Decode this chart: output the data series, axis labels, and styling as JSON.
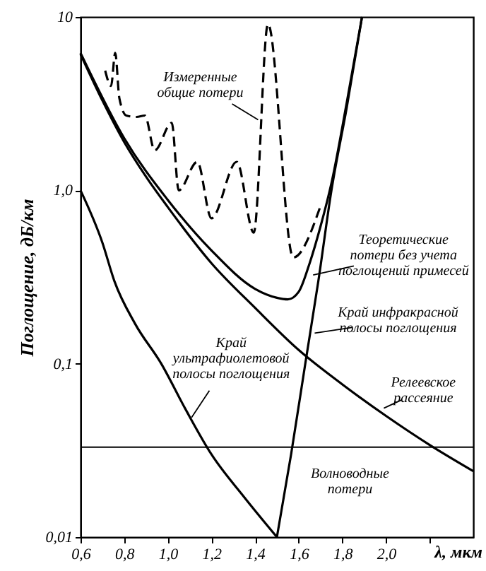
{
  "chart_data": {
    "type": "line",
    "xlabel": "λ, мкм",
    "ylabel": "Поглощение, дБ/км",
    "xlim": [
      0.6,
      2.4
    ],
    "xticks": [
      {
        "value": 0.6,
        "label": "0,6"
      },
      {
        "value": 0.8,
        "label": "0,8"
      },
      {
        "value": 1.0,
        "label": "1,0"
      },
      {
        "value": 1.2,
        "label": "1,2"
      },
      {
        "value": 1.4,
        "label": "1,4"
      },
      {
        "value": 1.6,
        "label": "1,6"
      },
      {
        "value": 1.8,
        "label": "1,8"
      },
      {
        "value": 2.0,
        "label": "2,0"
      },
      {
        "value": 2.2,
        "label": null
      }
    ],
    "ylim": [
      0.01,
      10
    ],
    "yticks": [
      {
        "value": 0.01,
        "label": "0,01"
      },
      {
        "value": 0.1,
        "label": "0,1"
      },
      {
        "value": 1,
        "label": "1,0"
      },
      10
    ],
    "log": "y",
    "grid": false,
    "marker": "none",
    "series": [
      {
        "color": "#000000",
        "line_style": "dashed",
        "x": [
          0.713,
          0.74,
          0.759,
          0.778,
          0.81,
          0.856,
          0.895,
          0.94,
          1.018,
          1.05,
          1.135,
          1.2,
          1.316,
          1.394,
          1.459,
          1.575,
          1.698
        ],
        "values": [
          4.9,
          4.0,
          6.2,
          3.4,
          2.7,
          2.65,
          2.7,
          1.7,
          2.45,
          1.0,
          1.46,
          0.69,
          1.46,
          0.57,
          9.1,
          0.41,
          0.8
        ]
      },
      {
        "color": "#000000",
        "line_style": "solid",
        "x": [
          0.6,
          0.8,
          1.0,
          1.2,
          1.4,
          1.5,
          1.55,
          1.6,
          1.65,
          1.7,
          1.75,
          1.82,
          1.89
        ],
        "values": [
          6.2,
          2.0,
          0.88,
          0.45,
          0.27,
          0.24,
          0.235,
          0.26,
          0.38,
          0.62,
          1.1,
          3.2,
          10
        ]
      },
      {
        "color": "#000000",
        "line_style": "solid",
        "x": [
          0.6,
          0.7,
          0.8,
          0.9,
          1.0,
          1.2,
          1.4,
          1.6,
          1.8,
          2.0,
          2.2,
          2.4
        ],
        "values": [
          6.1,
          3.3,
          1.9,
          1.2,
          0.8,
          0.38,
          0.21,
          0.12,
          0.076,
          0.05,
          0.034,
          0.024
        ]
      },
      {
        "color": "#000000",
        "line_style": "solid",
        "x": [
          0.6,
          0.7,
          0.755,
          0.85,
          0.97,
          1.08,
          1.2,
          1.35,
          1.5
        ],
        "values": [
          1.0,
          0.5,
          0.3,
          0.17,
          0.1,
          0.055,
          0.03,
          0.017,
          0.01
        ]
      },
      {
        "color": "#000000",
        "line_style": "solid",
        "x": [
          1.5,
          1.565,
          1.63,
          1.69,
          1.75,
          1.82,
          1.89
        ],
        "values": [
          0.01,
          0.03,
          0.1,
          0.3,
          1.0,
          3.0,
          10
        ]
      }
    ],
    "ref_lines": [
      {
        "axis": "y",
        "value": 0.033,
        "label": null,
        "color": "#000000"
      }
    ],
    "annotations": [
      {
        "text": "Измеренные\nобщие потери",
        "x": 1.414,
        "y": 2.55
      },
      {
        "text": "Теоретические\nпотери без учета\nпоглощений примесей",
        "x": 1.666,
        "y": 0.325
      },
      {
        "text": "Край инфракрасной\nполосы поглощения",
        "x": 1.673,
        "y": 0.15
      },
      {
        "text": "Край\nультрафиолетовой\nполосы поглощения",
        "x": 1.109,
        "y": 0.049
      },
      {
        "text": "Релеевское\nрассеяние",
        "x": 1.99,
        "y": 0.0554
      },
      {
        "text": "Волноводные\nпотери",
        "x": 1.835,
        "y": 0.033
      }
    ]
  }
}
